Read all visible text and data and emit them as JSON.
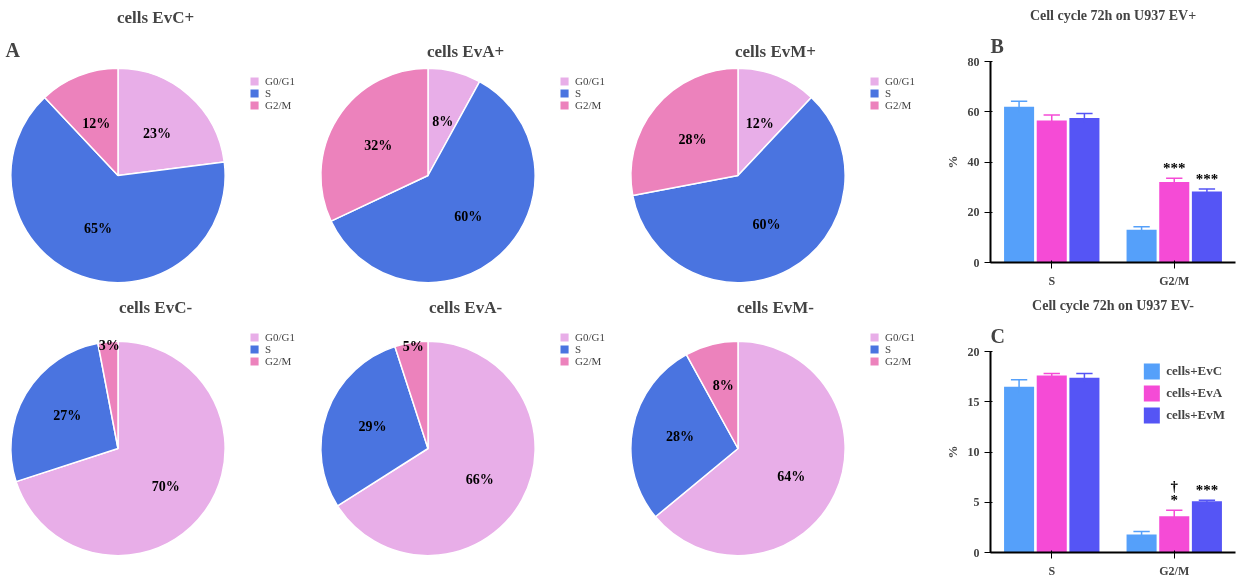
{
  "chart_data": [
    {
      "type": "pie",
      "title": "cells EvC+",
      "annotations": [
        "A"
      ],
      "categories": [
        "G0/G1",
        "S",
        "G2/M"
      ],
      "values": [
        23,
        65,
        12
      ],
      "colors": [
        "#e8aee8",
        "#4a74e0",
        "#ec82bc"
      ],
      "value_labels": [
        "23%",
        "65%",
        "12%"
      ],
      "legend": "top right"
    },
    {
      "type": "pie",
      "title": "cells EvA+",
      "categories": [
        "G0/G1",
        "S",
        "G2/M"
      ],
      "values": [
        8,
        60,
        32
      ],
      "colors": [
        "#e8aee8",
        "#4a74e0",
        "#ec82bc"
      ],
      "value_labels": [
        "8%",
        "60%",
        "32%"
      ],
      "legend": "top right"
    },
    {
      "type": "pie",
      "title": "cells EvM+",
      "categories": [
        "G0/G1",
        "S",
        "G2/M"
      ],
      "values": [
        12,
        60,
        28
      ],
      "colors": [
        "#e8aee8",
        "#4a74e0",
        "#ec82bc"
      ],
      "value_labels": [
        "12%",
        "60%",
        "28%"
      ],
      "legend": "top right"
    },
    {
      "type": "pie",
      "title": "cells EvC-",
      "categories": [
        "G0/G1",
        "S",
        "G2/M"
      ],
      "values": [
        70,
        27,
        3
      ],
      "colors": [
        "#e8aee8",
        "#4a74e0",
        "#ec82bc"
      ],
      "value_labels": [
        "70%",
        "27%",
        "3%"
      ],
      "legend": "top right"
    },
    {
      "type": "pie",
      "title": "cells EvA-",
      "categories": [
        "G0/G1",
        "S",
        "G2/M"
      ],
      "values": [
        66,
        29,
        5
      ],
      "colors": [
        "#e8aee8",
        "#4a74e0",
        "#ec82bc"
      ],
      "value_labels": [
        "66%",
        "29%",
        "5%"
      ],
      "legend": "top right"
    },
    {
      "type": "pie",
      "title": "cells EvM-",
      "categories": [
        "G0/G1",
        "S",
        "G2/M"
      ],
      "values": [
        64,
        28,
        8
      ],
      "colors": [
        "#e8aee8",
        "#4a74e0",
        "#ec82bc"
      ],
      "value_labels": [
        "64%",
        "28%",
        "8%"
      ],
      "legend": "top right"
    },
    {
      "type": "bar",
      "title": "Cell cycle 72h on U937 EV+",
      "ylabel": "%",
      "categories": [
        "S",
        "G2/M"
      ],
      "ylim": [
        0,
        80
      ],
      "yticks": [
        0,
        20,
        40,
        60,
        80
      ],
      "grid": false,
      "legend": false,
      "annotations": [
        "B",
        "***",
        "***"
      ],
      "series": [
        {
          "color": "#55a0fa",
          "values": [
            62,
            13
          ],
          "errors": [
            2.2,
            1.2
          ]
        },
        {
          "color": "#f54bd6",
          "values": [
            56.5,
            32
          ],
          "errors": [
            2.2,
            1.5
          ]
        },
        {
          "color": "#5555f5",
          "values": [
            57.5,
            28.3
          ],
          "errors": [
            1.8,
            1.0
          ]
        }
      ]
    },
    {
      "type": "bar",
      "title": "Cell cycle 72h on U937 EV-",
      "ylabel": "%",
      "categories": [
        "S",
        "G2/M"
      ],
      "ylim": [
        0,
        20
      ],
      "yticks": [
        0,
        5,
        10,
        15,
        20
      ],
      "grid": false,
      "legend": "top right",
      "annotations": [
        "C",
        "†\n*",
        "***"
      ],
      "series": [
        {
          "name": "cells+EvC",
          "color": "#55a0fa",
          "values": [
            16.5,
            1.8
          ],
          "errors": [
            0.7,
            0.3
          ]
        },
        {
          "name": "cells+EvA",
          "color": "#f54bd6",
          "values": [
            17.6,
            3.6
          ],
          "errors": [
            0.2,
            0.6
          ]
        },
        {
          "name": "cells+EvM",
          "color": "#5555f5",
          "values": [
            17.4,
            5.1
          ],
          "errors": [
            0.4,
            0.1
          ]
        }
      ]
    }
  ]
}
